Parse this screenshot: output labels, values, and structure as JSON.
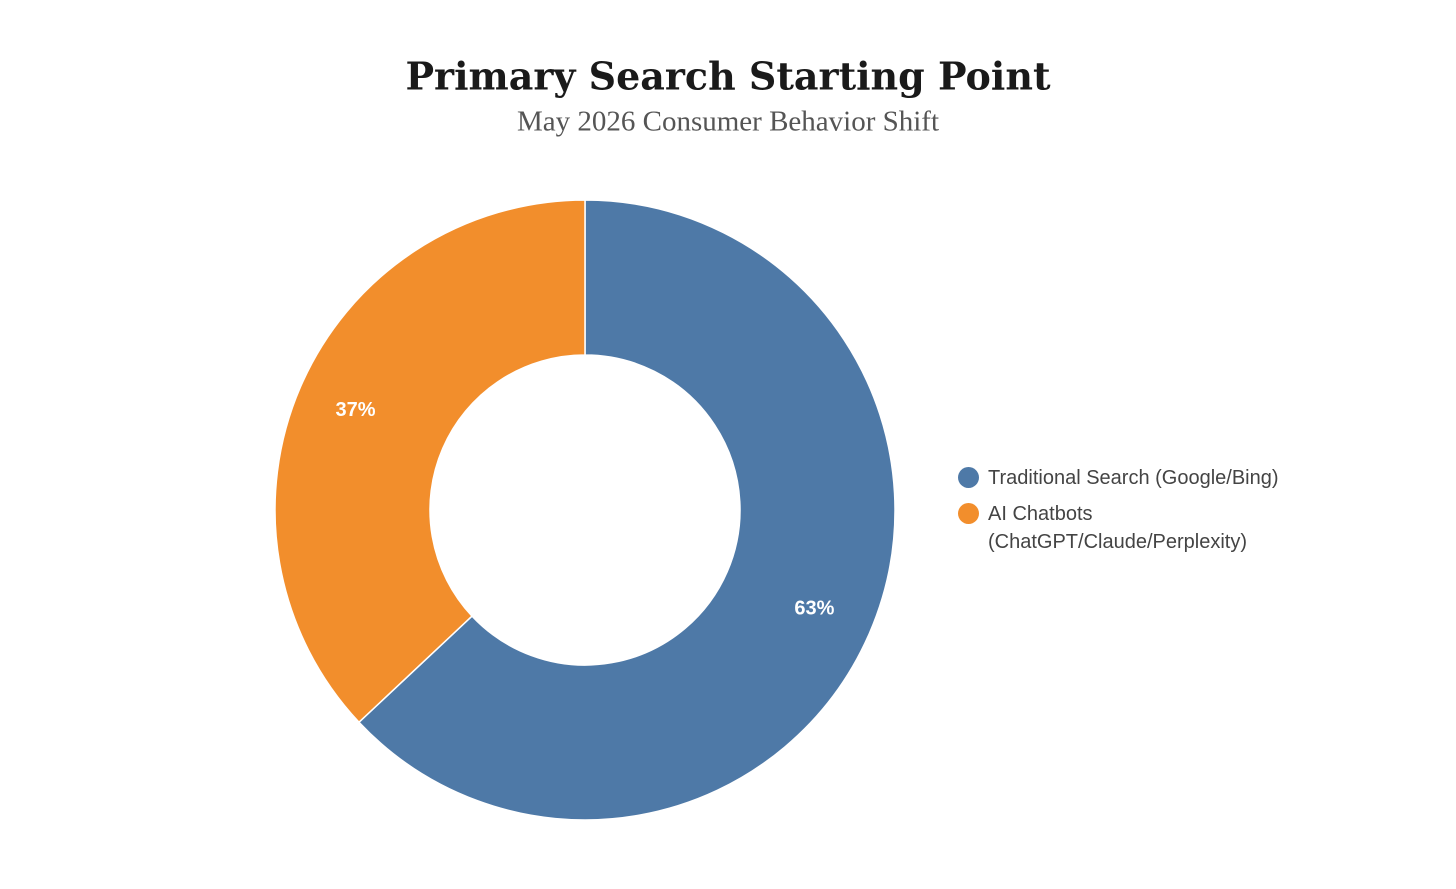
{
  "chart_data": {
    "type": "donut",
    "title": "Primary Search Starting Point",
    "subtitle": "May 2026 Consumer Behavior Shift",
    "categories": [
      "Traditional Search (Google/Bing)",
      "AI Chatbots (ChatGPT/Claude/Perplexity)"
    ],
    "values": [
      63,
      37
    ],
    "value_labels": [
      "63%",
      "37%"
    ],
    "colors": [
      "#4e79a7",
      "#f28e2c"
    ],
    "legend": "right"
  }
}
